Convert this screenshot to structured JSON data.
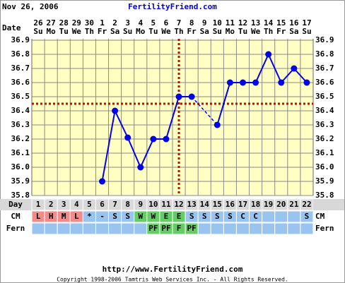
{
  "header": {
    "date": "Nov 26, 2006",
    "site": "FertilityFriend.com"
  },
  "chart_data": {
    "type": "line",
    "date_label": "Date",
    "categories": [
      "26",
      "27",
      "28",
      "29",
      "30",
      "1",
      "2",
      "3",
      "4",
      "5",
      "6",
      "7",
      "8",
      "9",
      "10",
      "11",
      "12",
      "13",
      "14",
      "15",
      "16",
      "17"
    ],
    "weekdays": [
      "Su",
      "Mo",
      "Tu",
      "We",
      "Th",
      "Fr",
      "Sa",
      "Su",
      "Mo",
      "Tu",
      "We",
      "Th",
      "Fr",
      "Sa",
      "Su",
      "Mo",
      "Tu",
      "We",
      "Th",
      "Fr",
      "Sa",
      "Su"
    ],
    "series": [
      {
        "color": "#0000ee",
        "values": [
          null,
          null,
          null,
          null,
          null,
          35.9,
          36.4,
          36.21,
          36.0,
          36.2,
          36.2,
          36.5,
          36.5,
          null,
          36.3,
          36.6,
          36.6,
          36.6,
          36.8,
          36.6,
          36.7,
          36.6
        ]
      }
    ],
    "ylim": [
      35.8,
      36.9
    ],
    "yticks": [
      35.8,
      35.9,
      {
        "value": 36,
        "label": "36.0"
      },
      36.1,
      36.2,
      36.3,
      36.4,
      36.5,
      36.6,
      36.7,
      36.8,
      36.9
    ],
    "grid": true,
    "coverline": 36.45,
    "ovulation_day": 12,
    "day_label": "Day",
    "days": [
      1,
      2,
      3,
      4,
      5,
      6,
      7,
      8,
      9,
      10,
      11,
      12,
      13,
      14,
      15,
      16,
      17,
      18,
      19,
      20,
      21,
      22
    ],
    "cm_label": "CM",
    "cm": [
      "L",
      "H",
      "M",
      "L",
      "*",
      "-",
      "S",
      "S",
      "W",
      "W",
      "E",
      "E",
      "S",
      "S",
      "S",
      "S",
      "C",
      "C",
      null,
      null,
      null,
      "S"
    ],
    "fern_label": "Fern",
    "fern": [
      null,
      null,
      null,
      null,
      null,
      null,
      null,
      null,
      null,
      "PF",
      "PF",
      "F",
      "PF",
      null,
      null,
      null,
      null,
      null,
      null,
      null,
      null,
      null
    ],
    "cell_colors": {
      "L": "#f08c8c",
      "H": "#f08c8c",
      "M": "#f08c8c",
      "W": "#66cc66",
      "E": "#66cc66",
      "PF": "#66cc66",
      "F": "#66cc66"
    },
    "default_cell_color": "#99c4f0"
  },
  "footer": {
    "url": "http://www.FertilityFriend.com",
    "copyright": "Copyright 1998-2006 Tamtris Web Services Inc. - All Rights Reserved."
  }
}
